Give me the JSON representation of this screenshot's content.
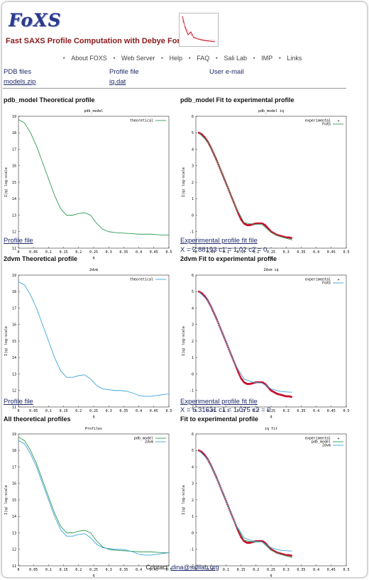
{
  "header": {
    "logo_text": "FoXS",
    "subtitle": "Fast SAXS Profile Computation with Debye Formula",
    "nav": [
      "About FOXS",
      "Web Server",
      "Help",
      "FAQ",
      "Sali Lab",
      "IMP",
      "Links"
    ]
  },
  "files": {
    "pdb_label": "PDB files",
    "pdb_link": "models.zip",
    "profile_label": "Profile file",
    "profile_link": "iq.dat",
    "email_label": "User e-mail"
  },
  "sections": {
    "s1_left": "pdb_model Theoretical profile",
    "s1_right": "pdb_model Fit to experimental profile",
    "s1_link_left": "Profile file",
    "s1_link_right": "Experimental profile fit file",
    "s1_formula": "X = 2.88193 c1 = 1.02 c2 = 0",
    "s2_left": "2dvm Theoretical profile",
    "s2_right": "2dvm Fit to experimental profile",
    "s2_link_left": "Profile file",
    "s2_link_right": "Experimental profile fit file",
    "s2_formula": "X = 6.31631 c1 = 1.075 c2 = 0",
    "s3_left": "All theoretical profiles",
    "s3_right": "Fit to experimental profile"
  },
  "contact": {
    "label": "Contact:",
    "email": "dina@salilab.org"
  },
  "colors": {
    "green": "#2e9a55",
    "blue": "#3ba3d8",
    "red": "#c8102e",
    "teal": "#2aa5a0"
  },
  "chart_data": [
    {
      "id": "p1",
      "type": "line",
      "title": "pdb_model",
      "xlabel": "q",
      "ylabel": "I(q) log-scale",
      "xlim": [
        0,
        0.5
      ],
      "ylim": [
        11,
        19
      ],
      "xticks": [
        "0",
        "0.05",
        "0.1",
        "0.15",
        "0.2",
        "0.25",
        "0.3",
        "0.35",
        "0.4",
        "0.45",
        "0.5"
      ],
      "yticks": [
        "11",
        "12",
        "13",
        "14",
        "15",
        "16",
        "17",
        "18",
        "19"
      ],
      "legend": "top-right",
      "series": [
        {
          "name": "theoretical",
          "color": "#2e9a55",
          "style": "line",
          "x": [
            0,
            0.02,
            0.04,
            0.06,
            0.08,
            0.1,
            0.12,
            0.14,
            0.16,
            0.18,
            0.2,
            0.22,
            0.24,
            0.26,
            0.28,
            0.3,
            0.32,
            0.34,
            0.36,
            0.38,
            0.4,
            0.42,
            0.44,
            0.46,
            0.48,
            0.5
          ],
          "y": [
            18.8,
            18.6,
            18.0,
            17.2,
            16.2,
            15.2,
            14.2,
            13.4,
            13.0,
            13.0,
            13.1,
            13.15,
            13.0,
            12.5,
            12.15,
            12.0,
            11.95,
            11.92,
            11.9,
            11.88,
            11.85,
            11.85,
            11.85,
            11.82,
            11.8,
            11.8
          ]
        }
      ]
    },
    {
      "id": "p2",
      "type": "line",
      "title": "pdb_model iq",
      "xlabel": "q",
      "ylabel": "I(q) log-scale",
      "xlim": [
        0,
        0.5
      ],
      "ylim": [
        -2,
        6
      ],
      "xticks": [
        "0",
        "0.05",
        "0.1",
        "0.15",
        "0.2",
        "0.25",
        "0.3",
        "0.35",
        "0.4",
        "0.45",
        "0.5"
      ],
      "yticks": [
        "-2",
        "-1",
        "0",
        "1",
        "2",
        "3",
        "4",
        "5",
        "6"
      ],
      "legend": "top-right",
      "series": [
        {
          "name": "experimental",
          "color": "#c8102e",
          "style": "points",
          "x": [
            0.01,
            0.02,
            0.03,
            0.04,
            0.05,
            0.06,
            0.07,
            0.08,
            0.09,
            0.1,
            0.11,
            0.12,
            0.13,
            0.14,
            0.15,
            0.16,
            0.17,
            0.18,
            0.19,
            0.2,
            0.21,
            0.22,
            0.23,
            0.24,
            0.25,
            0.26,
            0.27,
            0.28,
            0.29,
            0.3,
            0.31,
            0.32
          ],
          "y": [
            5.0,
            4.9,
            4.7,
            4.45,
            4.1,
            3.7,
            3.3,
            2.85,
            2.4,
            1.95,
            1.5,
            1.05,
            0.6,
            0.15,
            -0.25,
            -0.5,
            -0.6,
            -0.6,
            -0.55,
            -0.5,
            -0.5,
            -0.5,
            -0.6,
            -0.8,
            -1.0,
            -1.1,
            -1.2,
            -1.25,
            -1.3,
            -1.35,
            -1.35,
            -1.4
          ]
        },
        {
          "name": "FoXS",
          "color": "#2e9a55",
          "style": "line",
          "x": [
            0.01,
            0.04,
            0.07,
            0.1,
            0.13,
            0.16,
            0.19,
            0.22,
            0.25,
            0.28,
            0.31,
            0.32
          ],
          "y": [
            5.0,
            4.45,
            3.3,
            1.95,
            0.6,
            -0.45,
            -0.55,
            -0.55,
            -1.05,
            -1.3,
            -1.45,
            -1.5
          ]
        }
      ]
    },
    {
      "id": "p3",
      "type": "line",
      "title": "2dvm",
      "xlabel": "q",
      "ylabel": "I(q) log-scale",
      "xlim": [
        0,
        0.5
      ],
      "ylim": [
        11,
        19
      ],
      "xticks": [
        "0",
        "0.05",
        "0.1",
        "0.15",
        "0.2",
        "0.25",
        "0.3",
        "0.35",
        "0.4",
        "0.45",
        "0.5"
      ],
      "yticks": [
        "11",
        "12",
        "13",
        "14",
        "15",
        "16",
        "17",
        "18",
        "19"
      ],
      "legend": "top-right",
      "series": [
        {
          "name": "theoretical",
          "color": "#3ba3d8",
          "style": "line",
          "x": [
            0,
            0.02,
            0.04,
            0.06,
            0.08,
            0.1,
            0.12,
            0.14,
            0.16,
            0.18,
            0.2,
            0.22,
            0.24,
            0.26,
            0.28,
            0.3,
            0.32,
            0.34,
            0.36,
            0.38,
            0.4,
            0.42,
            0.44,
            0.46,
            0.48,
            0.5
          ],
          "y": [
            18.6,
            18.4,
            17.8,
            17.0,
            16.0,
            15.0,
            14.0,
            13.2,
            12.8,
            12.8,
            12.9,
            12.95,
            12.7,
            12.3,
            12.1,
            12.05,
            12.0,
            12.0,
            11.95,
            11.85,
            11.7,
            11.65,
            11.65,
            11.7,
            11.75,
            11.8
          ]
        }
      ]
    },
    {
      "id": "p4",
      "type": "line",
      "title": "2dvm iq",
      "xlabel": "q",
      "ylabel": "I(q) log-scale",
      "xlim": [
        0,
        0.5
      ],
      "ylim": [
        -2,
        6
      ],
      "xticks": [
        "0",
        "0.05",
        "0.1",
        "0.15",
        "0.2",
        "0.25",
        "0.3",
        "0.35",
        "0.4",
        "0.45",
        "0.5"
      ],
      "yticks": [
        "-2",
        "-1",
        "0",
        "1",
        "2",
        "3",
        "4",
        "5",
        "6"
      ],
      "legend": "top-right",
      "series": [
        {
          "name": "experimental",
          "color": "#c8102e",
          "style": "points",
          "x": [
            0.01,
            0.02,
            0.03,
            0.04,
            0.05,
            0.06,
            0.07,
            0.08,
            0.09,
            0.1,
            0.11,
            0.12,
            0.13,
            0.14,
            0.15,
            0.16,
            0.17,
            0.18,
            0.19,
            0.2,
            0.21,
            0.22,
            0.23,
            0.24,
            0.25,
            0.26,
            0.27,
            0.28,
            0.29,
            0.3,
            0.31,
            0.32
          ],
          "y": [
            5.0,
            4.9,
            4.7,
            4.45,
            4.1,
            3.7,
            3.3,
            2.85,
            2.4,
            1.95,
            1.5,
            1.05,
            0.6,
            0.15,
            -0.25,
            -0.5,
            -0.6,
            -0.6,
            -0.55,
            -0.5,
            -0.5,
            -0.5,
            -0.6,
            -0.8,
            -1.0,
            -1.1,
            -1.2,
            -1.25,
            -1.3,
            -1.35,
            -1.35,
            -1.4
          ]
        },
        {
          "name": "FoXS",
          "color": "#3ba3d8",
          "style": "line",
          "x": [
            0.01,
            0.04,
            0.07,
            0.1,
            0.13,
            0.16,
            0.19,
            0.22,
            0.25,
            0.28,
            0.31,
            0.32
          ],
          "y": [
            5.0,
            4.45,
            3.3,
            1.95,
            0.6,
            -0.3,
            -0.5,
            -0.55,
            -0.9,
            -1.05,
            -1.1,
            -1.1
          ]
        }
      ]
    },
    {
      "id": "p5",
      "type": "line",
      "title": "Profiles",
      "xlabel": "q",
      "ylabel": "I(q) log-scale",
      "xlim": [
        0,
        0.5
      ],
      "ylim": [
        11,
        19
      ],
      "xticks": [
        "0",
        "0.05",
        "0.1",
        "0.15",
        "0.2",
        "0.25",
        "0.3",
        "0.35",
        "0.4",
        "0.45",
        "0.5"
      ],
      "yticks": [
        "11",
        "12",
        "13",
        "14",
        "15",
        "16",
        "17",
        "18",
        "19"
      ],
      "legend": "top-right",
      "series": [
        {
          "name": "pdb_model",
          "color": "#2e9a55",
          "style": "line",
          "x": [
            0,
            0.02,
            0.04,
            0.06,
            0.08,
            0.1,
            0.12,
            0.14,
            0.16,
            0.18,
            0.2,
            0.22,
            0.24,
            0.26,
            0.28,
            0.3,
            0.32,
            0.34,
            0.36,
            0.38,
            0.4,
            0.42,
            0.44,
            0.46,
            0.48,
            0.5
          ],
          "y": [
            18.8,
            18.6,
            18.0,
            17.2,
            16.2,
            15.2,
            14.2,
            13.4,
            13.0,
            13.0,
            13.1,
            13.15,
            13.0,
            12.5,
            12.15,
            12.0,
            11.95,
            11.92,
            11.9,
            11.88,
            11.85,
            11.85,
            11.85,
            11.82,
            11.8,
            11.8
          ]
        },
        {
          "name": "2dvm",
          "color": "#3ba3d8",
          "style": "line",
          "x": [
            0,
            0.02,
            0.04,
            0.06,
            0.08,
            0.1,
            0.12,
            0.14,
            0.16,
            0.18,
            0.2,
            0.22,
            0.24,
            0.26,
            0.28,
            0.3,
            0.32,
            0.34,
            0.36,
            0.38,
            0.4,
            0.42,
            0.44,
            0.46,
            0.48,
            0.5
          ],
          "y": [
            18.6,
            18.4,
            17.8,
            17.0,
            16.0,
            15.0,
            14.0,
            13.2,
            12.8,
            12.8,
            12.9,
            12.95,
            12.7,
            12.3,
            12.1,
            12.05,
            12.0,
            12.0,
            11.95,
            11.85,
            11.7,
            11.65,
            11.65,
            11.7,
            11.75,
            11.8
          ]
        }
      ]
    },
    {
      "id": "p6",
      "type": "line",
      "title": "iq fit",
      "xlabel": "q",
      "ylabel": "I(q) log-scale",
      "xlim": [
        0,
        0.5
      ],
      "ylim": [
        -2,
        6
      ],
      "xticks": [
        "0",
        "0.05",
        "0.1",
        "0.15",
        "0.2",
        "0.25",
        "0.3",
        "0.35",
        "0.4",
        "0.45",
        "0.5"
      ],
      "yticks": [
        "-2",
        "-1",
        "0",
        "1",
        "2",
        "3",
        "4",
        "5",
        "6"
      ],
      "legend": "top-right",
      "series": [
        {
          "name": "experimental",
          "color": "#c8102e",
          "style": "points",
          "x": [
            0.01,
            0.02,
            0.03,
            0.04,
            0.05,
            0.06,
            0.07,
            0.08,
            0.09,
            0.1,
            0.11,
            0.12,
            0.13,
            0.14,
            0.15,
            0.16,
            0.17,
            0.18,
            0.19,
            0.2,
            0.21,
            0.22,
            0.23,
            0.24,
            0.25,
            0.26,
            0.27,
            0.28,
            0.29,
            0.3,
            0.31,
            0.32
          ],
          "y": [
            5.0,
            4.9,
            4.7,
            4.45,
            4.1,
            3.7,
            3.3,
            2.85,
            2.4,
            1.95,
            1.5,
            1.05,
            0.6,
            0.15,
            -0.25,
            -0.5,
            -0.6,
            -0.6,
            -0.55,
            -0.5,
            -0.5,
            -0.5,
            -0.6,
            -0.8,
            -1.0,
            -1.1,
            -1.2,
            -1.25,
            -1.3,
            -1.35,
            -1.35,
            -1.4
          ]
        },
        {
          "name": "pdb_model",
          "color": "#2e9a55",
          "style": "line",
          "x": [
            0.01,
            0.04,
            0.07,
            0.1,
            0.13,
            0.16,
            0.19,
            0.22,
            0.25,
            0.28,
            0.31,
            0.32
          ],
          "y": [
            5.0,
            4.45,
            3.3,
            1.95,
            0.6,
            -0.45,
            -0.55,
            -0.55,
            -1.05,
            -1.3,
            -1.45,
            -1.5
          ]
        },
        {
          "name": "2dvm",
          "color": "#3ba3d8",
          "style": "line",
          "x": [
            0.01,
            0.04,
            0.07,
            0.1,
            0.13,
            0.16,
            0.19,
            0.22,
            0.25,
            0.28,
            0.31,
            0.32
          ],
          "y": [
            5.0,
            4.45,
            3.3,
            1.95,
            0.6,
            -0.3,
            -0.5,
            -0.55,
            -0.9,
            -1.05,
            -1.1,
            -1.1
          ]
        }
      ]
    }
  ]
}
